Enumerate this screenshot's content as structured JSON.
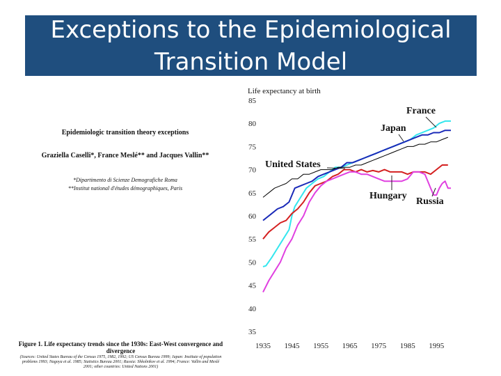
{
  "slide": {
    "title_line1": "Exceptions to the Epidemiological",
    "title_line2": "Transition Model"
  },
  "paper": {
    "heading": "Epidemiologic transition theory exceptions",
    "authors": "Graziella Caselli*, France Meslé** and Jacques Vallin**",
    "affiliation1": "*Dipartimento di Scienze Demografiche Roma",
    "affiliation2": "**Institut national d'études démographiques, Paris",
    "figure_caption_line1": "Figure 1. Life expectancy trends since the 1930s: East-West convergence and",
    "figure_caption_line2": "divergence",
    "figure_source": "(Sources: United States Bureau of the Census 1975, 1982, 1992; US Census Bureau 1999; Japan: Institute of population problems 1993; Nagoya et al. 1985; Statistics Bureau 2001; Russia: Shkolnikov et al. 1994; France: Vallin and Meslé 2001; other countries: United Nations 2001)"
  },
  "chart_data": {
    "type": "line",
    "ylabel": "Life expectancy at birth",
    "xlim": [
      1935,
      2000
    ],
    "ylim": [
      35,
      85
    ],
    "x_ticks": [
      1935,
      1945,
      1955,
      1965,
      1975,
      1985,
      1995
    ],
    "y_ticks": [
      35,
      40,
      45,
      50,
      55,
      60,
      65,
      70,
      75,
      80,
      85
    ],
    "series": [
      {
        "name": "France",
        "color": "#33e6ee",
        "points": [
          [
            1935,
            49
          ],
          [
            1936,
            49.2
          ],
          [
            1938,
            51
          ],
          [
            1940,
            53
          ],
          [
            1942,
            55
          ],
          [
            1944,
            57
          ],
          [
            1945,
            60
          ],
          [
            1946,
            62
          ],
          [
            1948,
            64
          ],
          [
            1950,
            66
          ],
          [
            1952,
            67
          ],
          [
            1954,
            68
          ],
          [
            1956,
            68.5
          ],
          [
            1958,
            69.5
          ],
          [
            1960,
            70.5
          ],
          [
            1962,
            70.5
          ],
          [
            1964,
            71
          ],
          [
            1966,
            71.5
          ],
          [
            1968,
            72
          ],
          [
            1970,
            72.5
          ],
          [
            1972,
            73
          ],
          [
            1974,
            73.5
          ],
          [
            1976,
            74
          ],
          [
            1978,
            74.5
          ],
          [
            1980,
            75
          ],
          [
            1982,
            75.5
          ],
          [
            1984,
            76
          ],
          [
            1986,
            76.5
          ],
          [
            1988,
            77.5
          ],
          [
            1990,
            78
          ],
          [
            1992,
            78.5
          ],
          [
            1994,
            79
          ],
          [
            1996,
            80
          ],
          [
            1998,
            80.5
          ],
          [
            2000,
            80.5
          ]
        ]
      },
      {
        "name": "Japan",
        "color": "#1a2ab8",
        "points": [
          [
            1935,
            59
          ],
          [
            1938,
            60.5
          ],
          [
            1940,
            61.5
          ],
          [
            1942,
            62
          ],
          [
            1944,
            63
          ],
          [
            1946,
            66
          ],
          [
            1948,
            66.5
          ],
          [
            1950,
            67
          ],
          [
            1952,
            67.5
          ],
          [
            1954,
            68.5
          ],
          [
            1956,
            69
          ],
          [
            1958,
            69.5
          ],
          [
            1960,
            70
          ],
          [
            1962,
            70.5
          ],
          [
            1964,
            71.5
          ],
          [
            1966,
            71.5
          ],
          [
            1968,
            72
          ],
          [
            1970,
            72.5
          ],
          [
            1972,
            73
          ],
          [
            1974,
            73.5
          ],
          [
            1976,
            74
          ],
          [
            1978,
            74.5
          ],
          [
            1980,
            75
          ],
          [
            1982,
            75.5
          ],
          [
            1984,
            76
          ],
          [
            1986,
            76.5
          ],
          [
            1988,
            77
          ],
          [
            1990,
            77.5
          ],
          [
            1992,
            77.5
          ],
          [
            1994,
            78
          ],
          [
            1996,
            78
          ],
          [
            1998,
            78.5
          ],
          [
            2000,
            78.5
          ]
        ]
      },
      {
        "name": "United States",
        "color": "#000000",
        "points": [
          [
            1935,
            64
          ],
          [
            1937,
            65
          ],
          [
            1939,
            66
          ],
          [
            1941,
            66.5
          ],
          [
            1943,
            67
          ],
          [
            1945,
            68
          ],
          [
            1947,
            68
          ],
          [
            1949,
            69
          ],
          [
            1951,
            69
          ],
          [
            1953,
            69.5
          ],
          [
            1955,
            70
          ],
          [
            1957,
            70
          ],
          [
            1959,
            70
          ],
          [
            1961,
            70.5
          ],
          [
            1963,
            70.5
          ],
          [
            1965,
            70.5
          ],
          [
            1967,
            71
          ],
          [
            1969,
            71
          ],
          [
            1971,
            71.5
          ],
          [
            1973,
            72
          ],
          [
            1975,
            72.5
          ],
          [
            1977,
            73
          ],
          [
            1979,
            73.5
          ],
          [
            1981,
            74
          ],
          [
            1983,
            74.5
          ],
          [
            1985,
            75
          ],
          [
            1987,
            75
          ],
          [
            1989,
            75.5
          ],
          [
            1991,
            75.5
          ],
          [
            1993,
            76
          ],
          [
            1995,
            76
          ],
          [
            1997,
            76.5
          ],
          [
            1999,
            77
          ]
        ]
      },
      {
        "name": "Hungary",
        "color": "#d42020",
        "points": [
          [
            1935,
            55
          ],
          [
            1937,
            56.5
          ],
          [
            1939,
            57.5
          ],
          [
            1941,
            58.5
          ],
          [
            1943,
            59
          ],
          [
            1945,
            60.5
          ],
          [
            1947,
            61.5
          ],
          [
            1949,
            63
          ],
          [
            1951,
            65
          ],
          [
            1953,
            66.5
          ],
          [
            1955,
            67
          ],
          [
            1957,
            67.5
          ],
          [
            1959,
            68.5
          ],
          [
            1961,
            69
          ],
          [
            1963,
            70
          ],
          [
            1965,
            70
          ],
          [
            1967,
            69.5
          ],
          [
            1969,
            70
          ],
          [
            1971,
            69.5
          ],
          [
            1973,
            69.8
          ],
          [
            1975,
            69.5
          ],
          [
            1977,
            70
          ],
          [
            1979,
            69.5
          ],
          [
            1981,
            69.5
          ],
          [
            1983,
            69.5
          ],
          [
            1985,
            69
          ],
          [
            1987,
            69.5
          ],
          [
            1989,
            69.5
          ],
          [
            1991,
            69.5
          ],
          [
            1993,
            69
          ],
          [
            1995,
            70
          ],
          [
            1997,
            71
          ],
          [
            1999,
            71
          ]
        ]
      },
      {
        "name": "Russia",
        "color": "#e040e0",
        "points": [
          [
            1935,
            43.5
          ],
          [
            1937,
            46
          ],
          [
            1939,
            48
          ],
          [
            1941,
            50
          ],
          [
            1943,
            53
          ],
          [
            1945,
            55
          ],
          [
            1947,
            58
          ],
          [
            1949,
            60
          ],
          [
            1951,
            63
          ],
          [
            1953,
            65
          ],
          [
            1955,
            66.5
          ],
          [
            1957,
            67.5
          ],
          [
            1959,
            68
          ],
          [
            1961,
            68.5
          ],
          [
            1963,
            69
          ],
          [
            1965,
            69.5
          ],
          [
            1967,
            69.5
          ],
          [
            1969,
            69
          ],
          [
            1971,
            69
          ],
          [
            1973,
            68.5
          ],
          [
            1975,
            68
          ],
          [
            1977,
            67.5
          ],
          [
            1979,
            67.5
          ],
          [
            1981,
            67.5
          ],
          [
            1983,
            67.5
          ],
          [
            1985,
            68
          ],
          [
            1987,
            69.5
          ],
          [
            1989,
            69.5
          ],
          [
            1991,
            69
          ],
          [
            1993,
            66
          ],
          [
            1994,
            64.5
          ],
          [
            1995,
            64.5
          ],
          [
            1996,
            66
          ],
          [
            1997,
            67
          ],
          [
            1998,
            67.5
          ],
          [
            1999,
            66
          ],
          [
            2000,
            66
          ]
        ]
      }
    ],
    "annotations": [
      {
        "series": "France",
        "label": "France"
      },
      {
        "series": "Japan",
        "label": "Japan"
      },
      {
        "series": "United States",
        "label": "United States"
      },
      {
        "series": "Hungary",
        "label": "Hungary"
      },
      {
        "series": "Russia",
        "label": "Russia"
      }
    ]
  }
}
